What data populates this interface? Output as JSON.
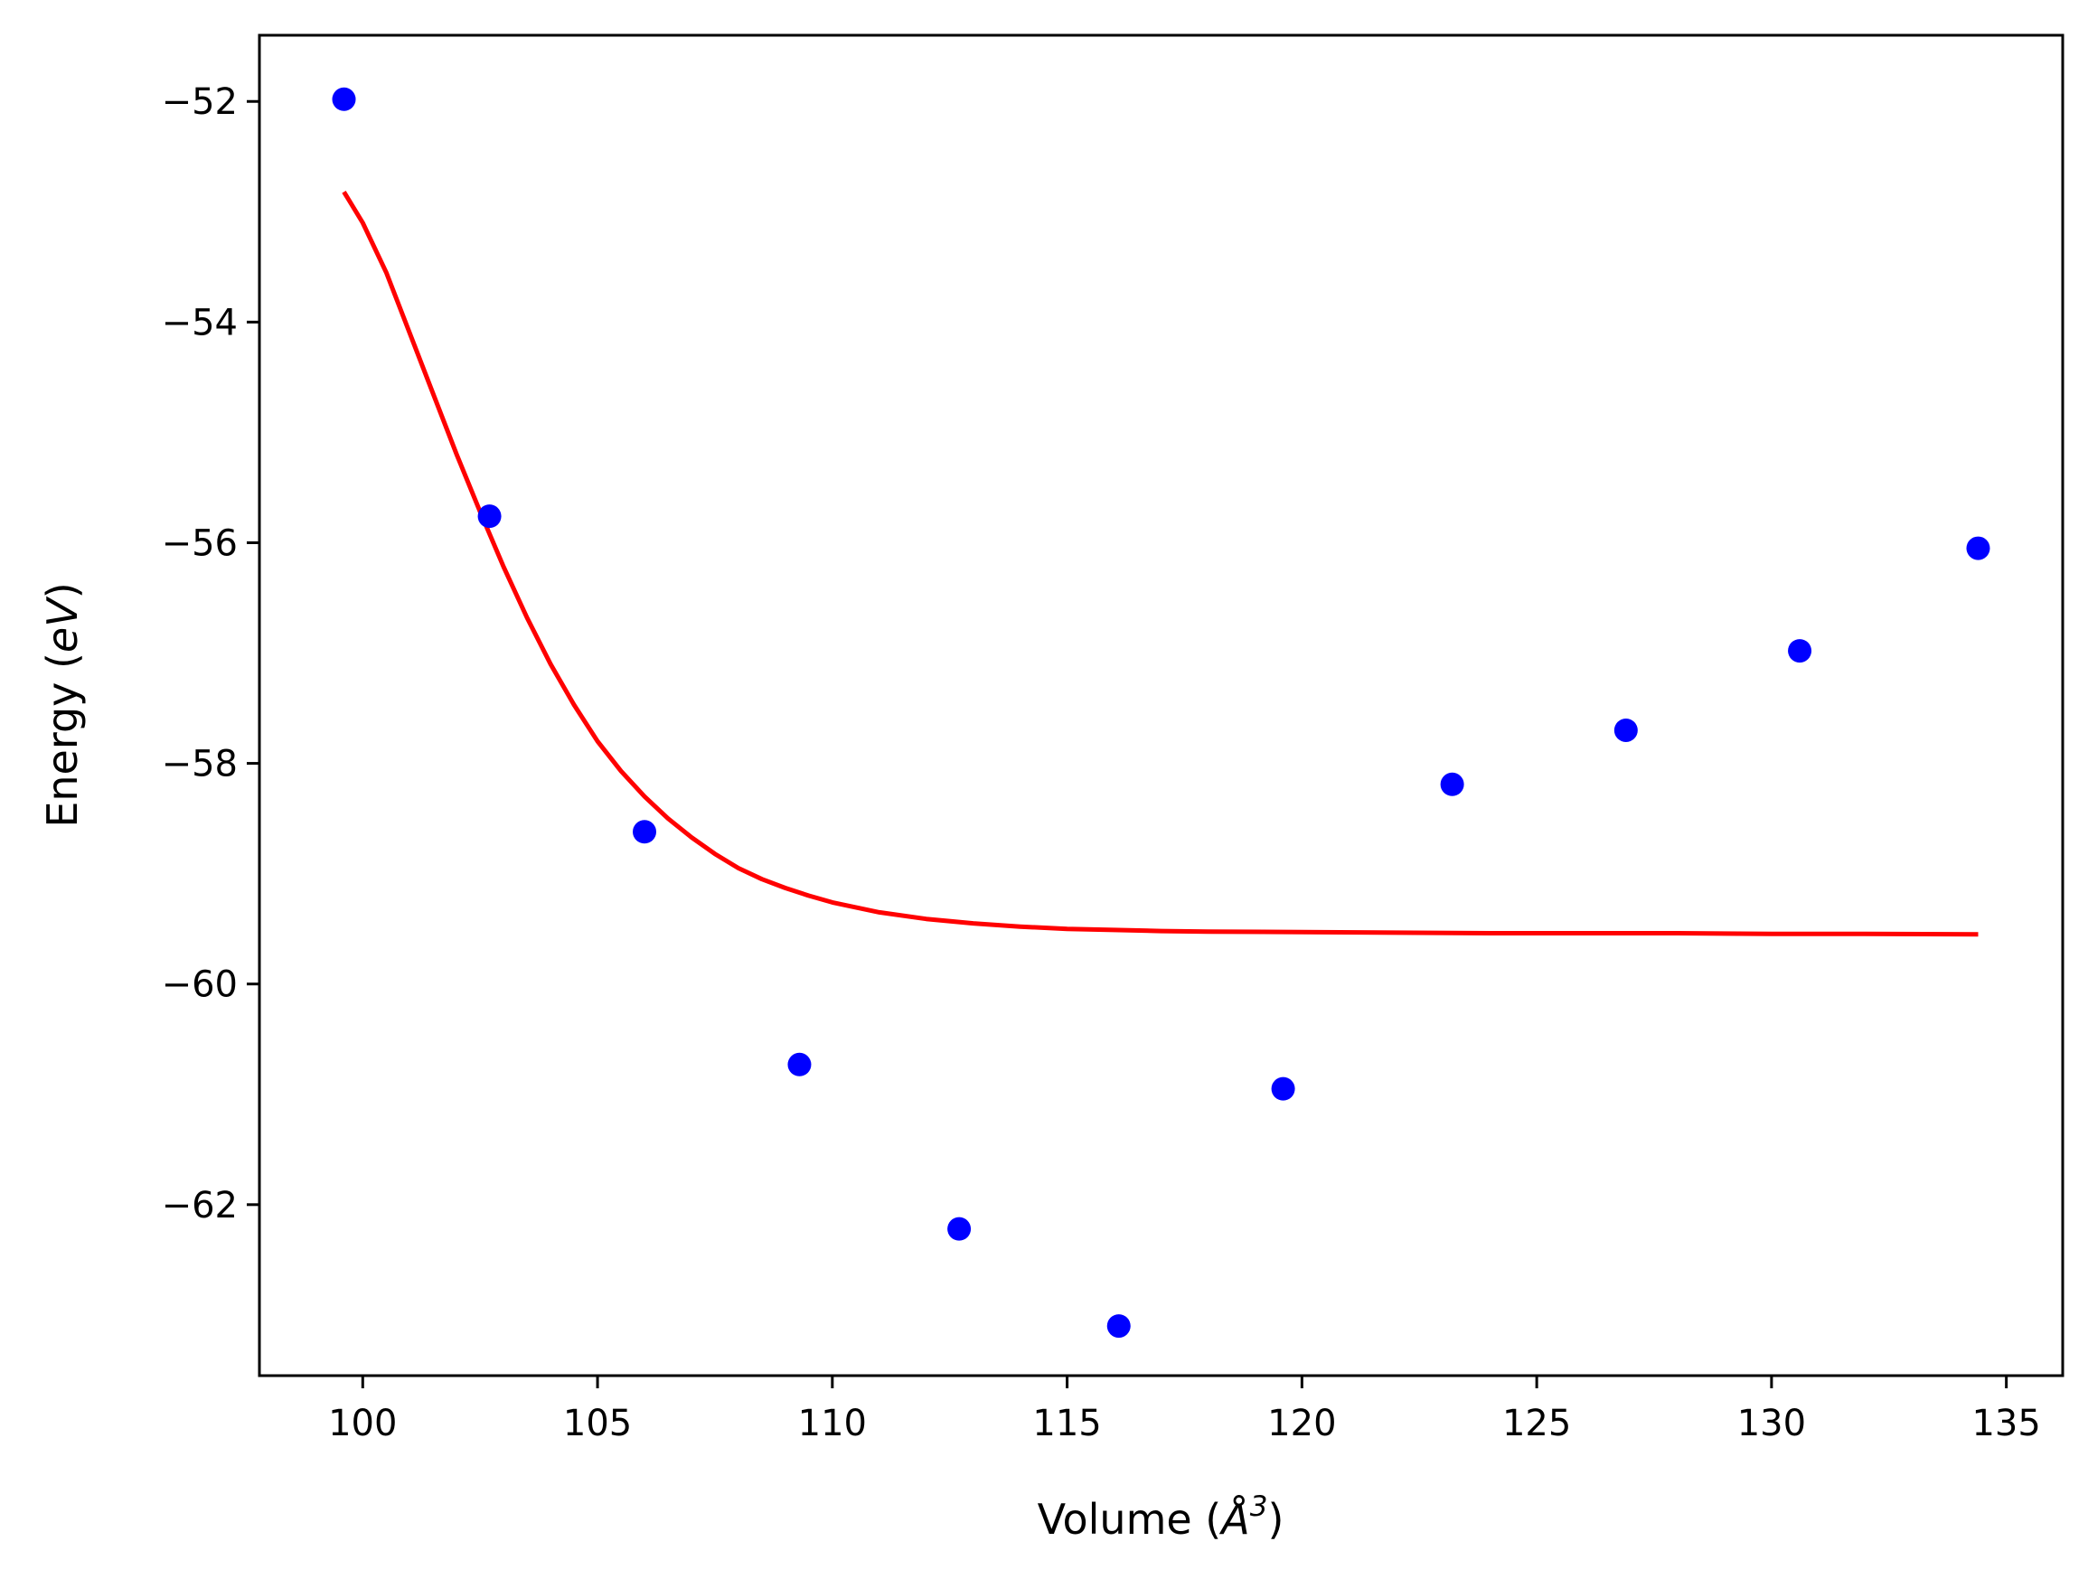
{
  "chart_data": {
    "type": "scatter",
    "xlabel": "Volume (Å³)",
    "ylabel": "Energy (eV)",
    "xlabel_parts": [
      "Volume (",
      "Å",
      "3",
      ")"
    ],
    "ylabel_parts": [
      "Energy (",
      "eV",
      ")"
    ],
    "xlim": [
      97.8,
      136.2
    ],
    "ylim": [
      -63.55,
      -51.4
    ],
    "xticks": [
      100,
      105,
      110,
      115,
      120,
      125,
      130,
      135
    ],
    "yticks": [
      -52,
      -54,
      -56,
      -58,
      -60,
      -62
    ],
    "xtick_labels": [
      "100",
      "105",
      "110",
      "115",
      "120",
      "125",
      "130",
      "135"
    ],
    "ytick_labels": [
      "−52",
      "−54",
      "−56",
      "−58",
      "−60",
      "−62"
    ],
    "grid": false,
    "series": [
      {
        "kind": "points",
        "color": "#0000ff",
        "x": [
          99.6,
          102.7,
          106.0,
          109.3,
          112.7,
          116.1,
          119.6,
          123.2,
          126.9,
          130.6,
          134.4
        ],
        "y": [
          -51.98,
          -55.76,
          -58.62,
          -60.73,
          -62.22,
          -63.1,
          -60.95,
          -58.19,
          -57.7,
          -56.98,
          -56.05
        ]
      },
      {
        "kind": "line",
        "color": "#ff0000",
        "x": [
          99.6,
          100.0,
          100.5,
          101.0,
          101.5,
          102.0,
          102.5,
          103.0,
          103.5,
          104.0,
          104.5,
          105.0,
          105.5,
          106.0,
          106.5,
          107.0,
          107.5,
          108.0,
          108.5,
          109.0,
          109.5,
          110.0,
          111.0,
          112.0,
          113.0,
          114.0,
          115.0,
          116.0,
          117.0,
          118.0,
          120.0,
          122.0,
          124.0,
          126.0,
          128.0,
          130.0,
          132.0,
          134.4
        ],
        "y": [
          -52.82,
          -53.1,
          -53.55,
          -54.1,
          -54.65,
          -55.2,
          -55.72,
          -56.22,
          -56.68,
          -57.1,
          -57.47,
          -57.8,
          -58.07,
          -58.3,
          -58.5,
          -58.67,
          -58.82,
          -58.95,
          -59.05,
          -59.13,
          -59.2,
          -59.26,
          -59.35,
          -59.41,
          -59.45,
          -59.48,
          -59.5,
          -59.51,
          -59.52,
          -59.525,
          -59.53,
          -59.535,
          -59.54,
          -59.54,
          -59.54,
          -59.545,
          -59.545,
          -59.55
        ]
      }
    ]
  }
}
